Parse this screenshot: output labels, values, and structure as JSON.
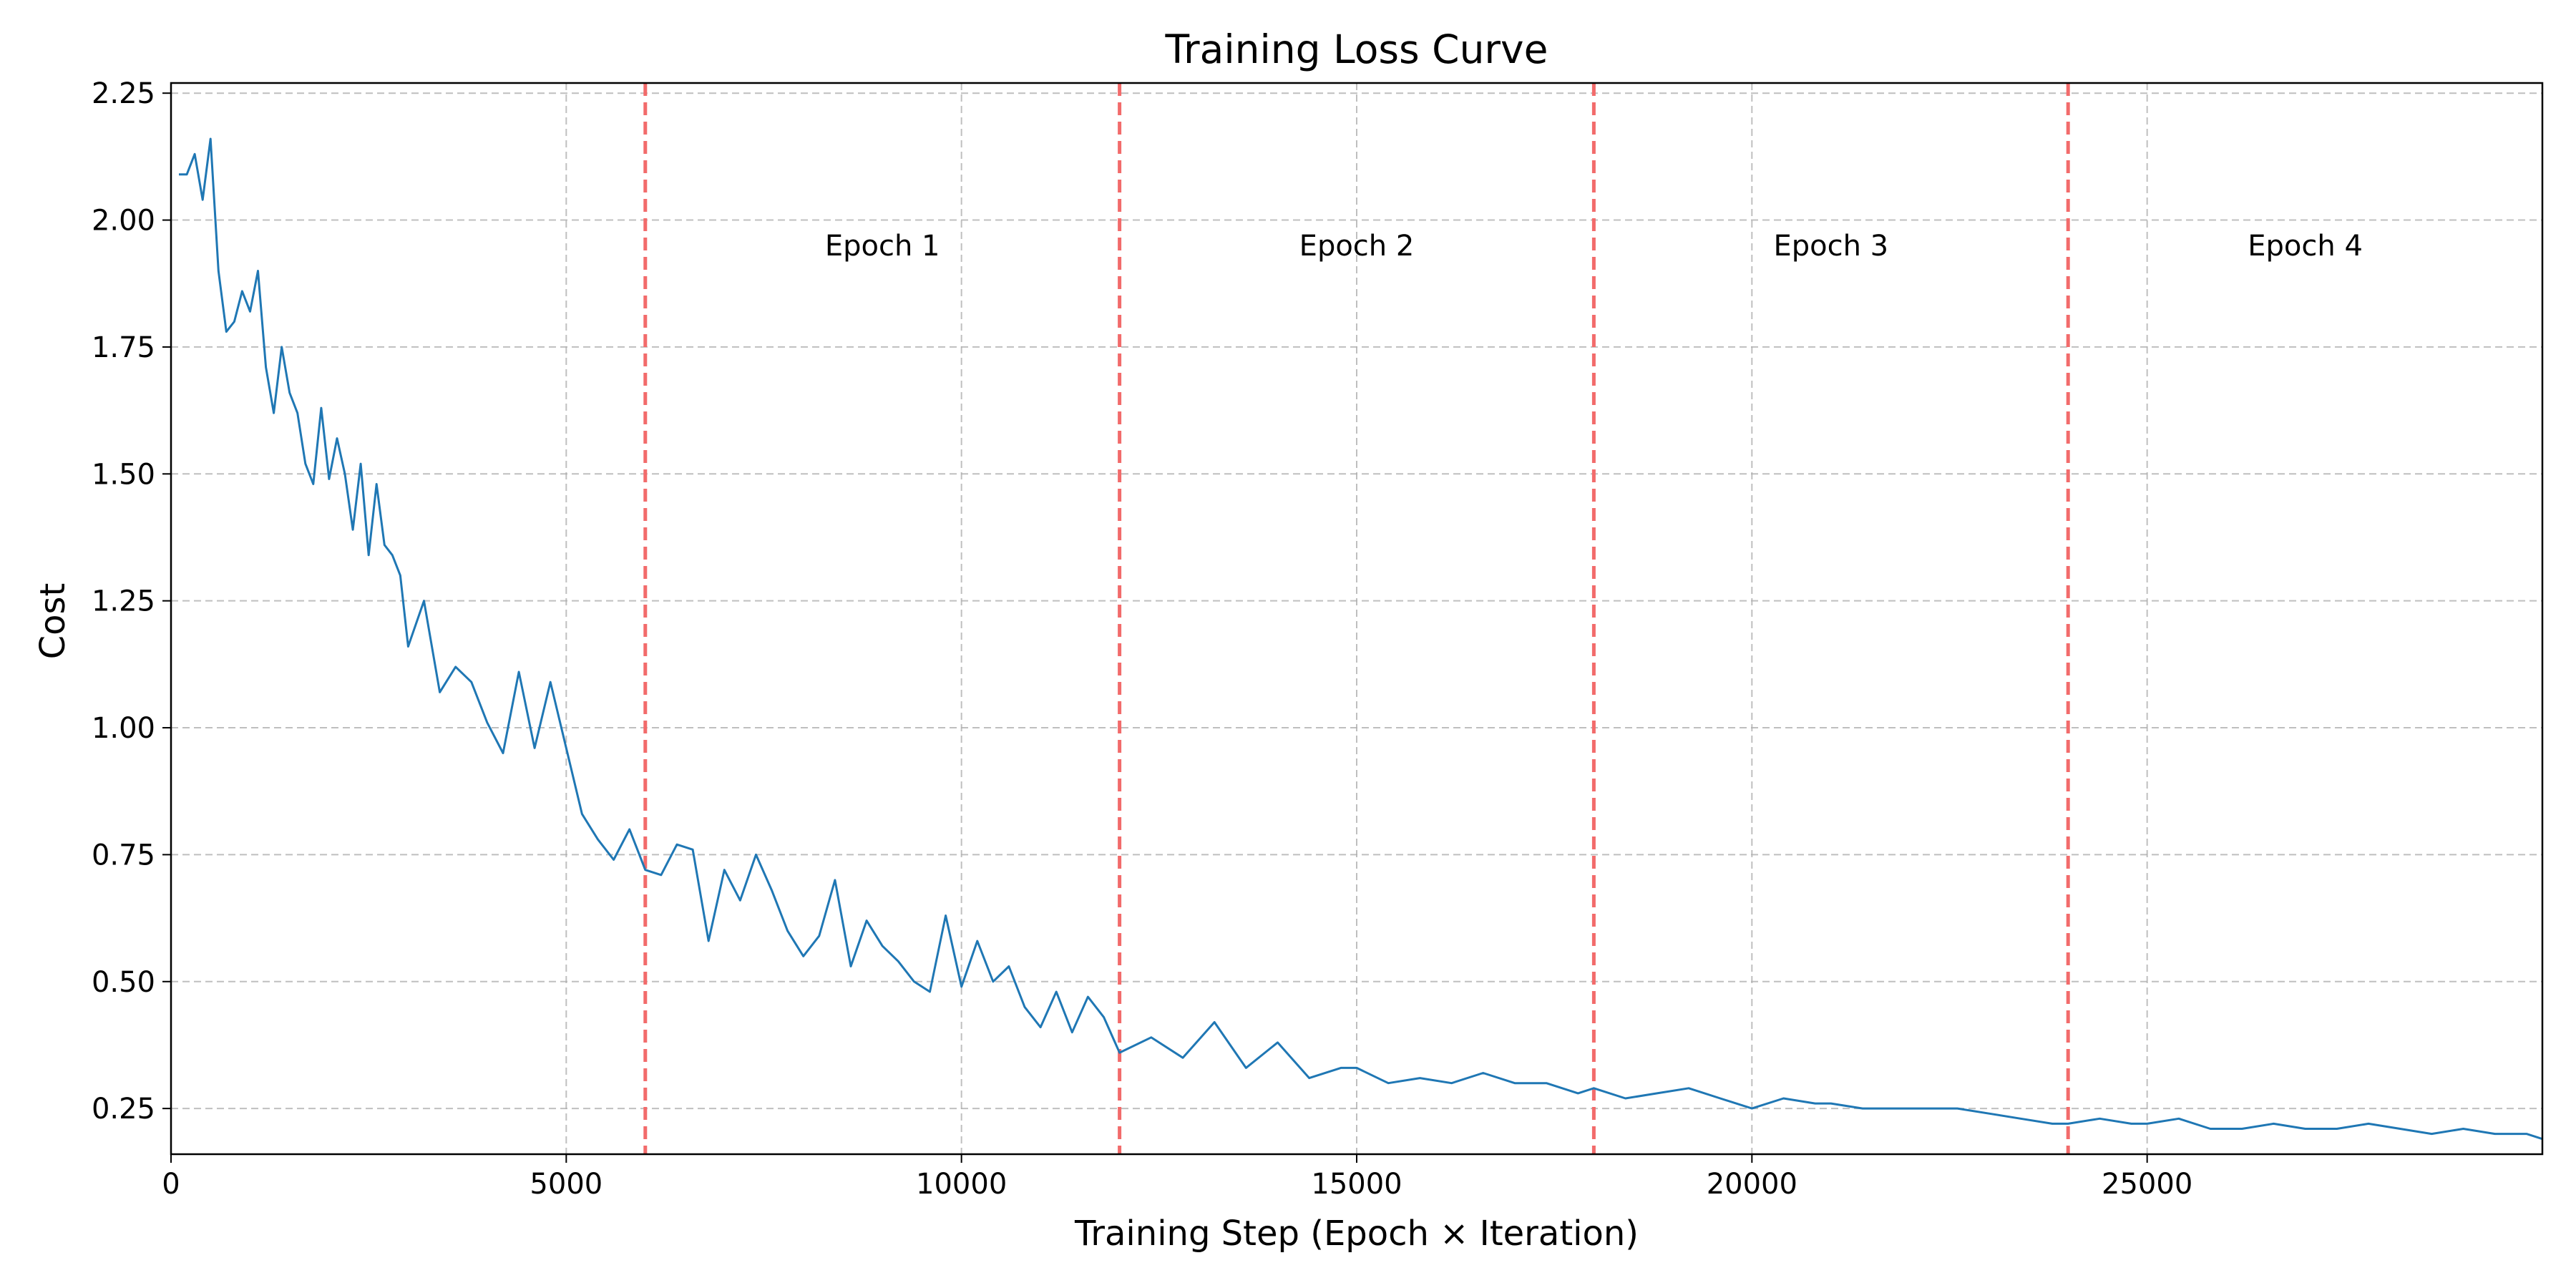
{
  "chart_data": {
    "type": "line",
    "title": "Training Loss Curve",
    "xlabel": "Training Step (Epoch × Iteration)",
    "ylabel": "Cost",
    "xlim": [
      0,
      30000
    ],
    "ylim": [
      0.16,
      2.27
    ],
    "xticks": [
      0,
      5000,
      10000,
      15000,
      20000,
      25000
    ],
    "yticks": [
      0.25,
      0.5,
      0.75,
      1.0,
      1.25,
      1.5,
      1.75,
      2.0,
      2.25
    ],
    "grid": true,
    "line_color": "#1f77b4",
    "epoch_line_color": "#f26b6b",
    "epoch_boundaries": [
      6000,
      12000,
      18000,
      24000
    ],
    "annotations": [
      {
        "text": "Epoch 1",
        "x": 9000,
        "y": 1.95
      },
      {
        "text": "Epoch 2",
        "x": 15000,
        "y": 1.95
      },
      {
        "text": "Epoch 3",
        "x": 21000,
        "y": 1.95
      },
      {
        "text": "Epoch 4",
        "x": 27000,
        "y": 1.95
      }
    ],
    "series": [
      {
        "x": [
          100,
          200,
          300,
          400,
          500,
          600,
          700,
          800,
          900,
          1000,
          1100,
          1200,
          1300,
          1400,
          1500,
          1600,
          1700,
          1800,
          1900,
          2000,
          2100,
          2200,
          2300,
          2400,
          2500,
          2600,
          2700,
          2800,
          2900,
          3000,
          3200,
          3400,
          3600,
          3800,
          4000,
          4200,
          4400,
          4600,
          4800,
          5000,
          5200,
          5400,
          5600,
          5800,
          6000,
          6200,
          6400,
          6600,
          6800,
          7000,
          7200,
          7400,
          7600,
          7800,
          8000,
          8200,
          8400,
          8600,
          8800,
          9000,
          9200,
          9400,
          9600,
          9800,
          10000,
          10200,
          10400,
          10600,
          10800,
          11000,
          11200,
          11400,
          11600,
          11800,
          12000,
          12400,
          12800,
          13200,
          13600,
          14000,
          14400,
          14800,
          15000,
          15400,
          15800,
          16200,
          16600,
          17000,
          17400,
          17800,
          18000,
          18400,
          18800,
          19200,
          19600,
          20000,
          20400,
          20800,
          21000,
          21400,
          21800,
          22200,
          22600,
          23000,
          23400,
          23800,
          24000,
          24400,
          24800,
          25000,
          25400,
          25800,
          26200,
          26600,
          27000,
          27400,
          27800,
          28200,
          28600,
          29000,
          29400,
          29800,
          30000
        ],
        "y": [
          2.09,
          2.09,
          2.13,
          2.04,
          2.16,
          1.9,
          1.78,
          1.8,
          1.86,
          1.82,
          1.9,
          1.71,
          1.62,
          1.75,
          1.66,
          1.62,
          1.52,
          1.48,
          1.63,
          1.49,
          1.57,
          1.5,
          1.39,
          1.52,
          1.34,
          1.48,
          1.36,
          1.34,
          1.3,
          1.16,
          1.25,
          1.07,
          1.12,
          1.09,
          1.01,
          0.95,
          1.11,
          0.96,
          1.09,
          0.96,
          0.83,
          0.78,
          0.74,
          0.8,
          0.72,
          0.71,
          0.77,
          0.76,
          0.58,
          0.72,
          0.66,
          0.75,
          0.68,
          0.6,
          0.55,
          0.59,
          0.7,
          0.53,
          0.62,
          0.57,
          0.54,
          0.5,
          0.48,
          0.63,
          0.49,
          0.58,
          0.5,
          0.53,
          0.45,
          0.41,
          0.48,
          0.4,
          0.47,
          0.43,
          0.36,
          0.39,
          0.35,
          0.42,
          0.33,
          0.38,
          0.31,
          0.33,
          0.33,
          0.3,
          0.31,
          0.3,
          0.32,
          0.3,
          0.3,
          0.28,
          0.29,
          0.27,
          0.28,
          0.29,
          0.27,
          0.25,
          0.27,
          0.26,
          0.26,
          0.25,
          0.25,
          0.25,
          0.25,
          0.24,
          0.23,
          0.22,
          0.22,
          0.23,
          0.22,
          0.22,
          0.23,
          0.21,
          0.21,
          0.22,
          0.21,
          0.21,
          0.22,
          0.21,
          0.2,
          0.21,
          0.2,
          0.2,
          0.19
        ]
      }
    ]
  }
}
